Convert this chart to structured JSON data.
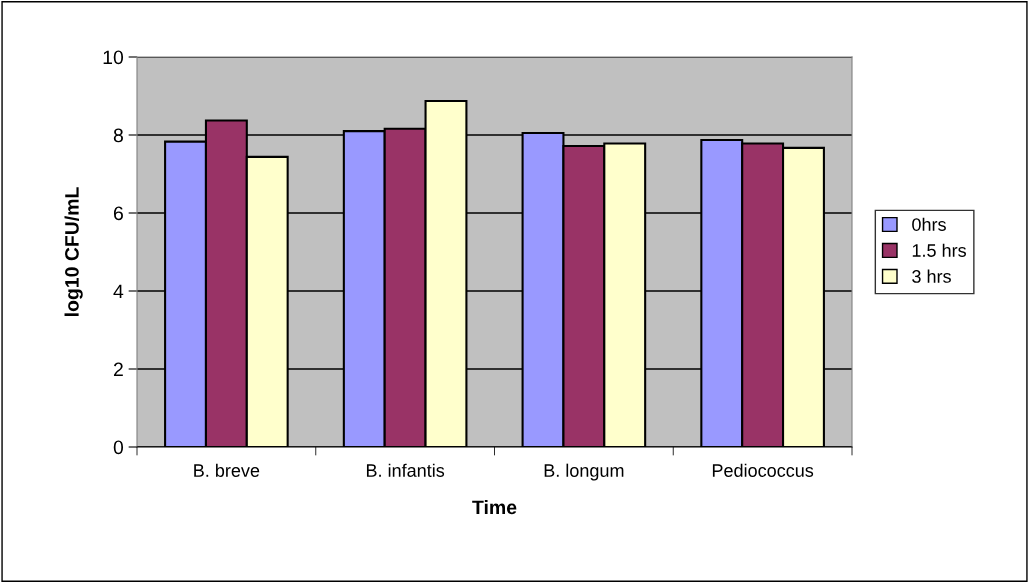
{
  "chart_data": {
    "type": "bar",
    "xlabel": "Time",
    "ylabel": "log10 CFU/mL",
    "categories": [
      "B. breve",
      "B. infantis",
      "B. longum",
      "Pediococcus"
    ],
    "series": [
      {
        "name": "0hrs",
        "color": "#9999ff",
        "values": [
          7.83,
          8.1,
          8.05,
          7.87
        ]
      },
      {
        "name": "1.5 hrs",
        "color": "#993366",
        "values": [
          8.37,
          8.16,
          7.72,
          7.78
        ]
      },
      {
        "name": "3 hrs",
        "color": "#ffffcc",
        "values": [
          7.44,
          8.87,
          7.78,
          7.67
        ]
      }
    ],
    "ylim": [
      0,
      10
    ],
    "yticks": [
      0,
      2,
      4,
      6,
      8,
      10
    ],
    "grid": "y",
    "legend": "right"
  }
}
